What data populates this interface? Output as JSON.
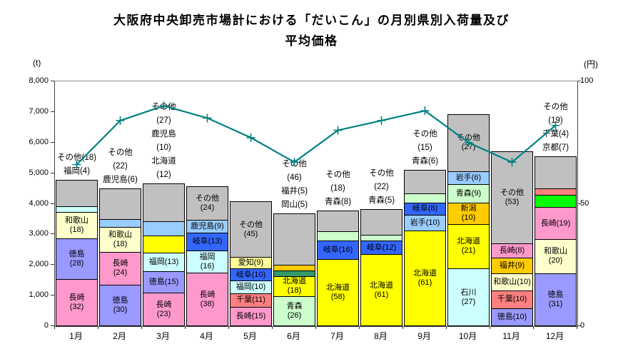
{
  "title": "大阪府中央卸売市場計における「だいこん」の月別県別入荷量及び\n平均価格",
  "left_axis": {
    "unit": "(t)",
    "max": 8000,
    "ticks": [
      "8,000",
      "7,000",
      "6,000",
      "5,000",
      "4,000",
      "3,000",
      "2,000",
      "1,000",
      "0"
    ]
  },
  "right_axis": {
    "unit": "(円)",
    "max": 100,
    "ticks": [
      "100",
      "50",
      "0"
    ]
  },
  "colors": {
    "長崎": "#FF99CC",
    "徳島": "#9999FF",
    "和歌山": "#FFFFCC",
    "福岡": "#CCFFFF",
    "鹿児島": "#99CCFF",
    "北海道": "#FFFF00",
    "岐阜": "#3366FF",
    "青森": "#CCFFCC",
    "千葉": "#FF8080",
    "愛知": "#FFFF99",
    "岡山": "#339966",
    "福井": "#FFCC00",
    "新潟": "#FFCC00",
    "岩手": "#99CCFF",
    "石川": "#CCFFFF",
    "京都": "#00FF00",
    "その他": "#C0C0C0",
    "line": "#008080"
  },
  "chart_data": {
    "type": "bar",
    "subtype": "stacked-bar-with-line",
    "title": "大阪府中央卸売市場計における「だいこん」の月別県別入荷量及び平均価格",
    "ylabel_left": "(t)",
    "ylabel_right": "(円)",
    "ylim_left": [
      0,
      8000
    ],
    "ylim_right": [
      0,
      100
    ],
    "grid": false,
    "legend": "none",
    "categories": [
      "1月",
      "2月",
      "3月",
      "4月",
      "5月",
      "6月",
      "7月",
      "8月",
      "9月",
      "10月",
      "11月",
      "12月"
    ],
    "bar_totals_t": [
      4750,
      4470,
      4650,
      4540,
      4060,
      3670,
      3760,
      3810,
      5090,
      6910,
      5700,
      5530
    ],
    "months": [
      {
        "month": "1月",
        "total_t": 4750,
        "above_label": "その他(18)\n福岡(4)",
        "segments": [
          {
            "name": "長崎",
            "pct": 32,
            "label": "長崎\n(32)"
          },
          {
            "name": "徳島",
            "pct": 28,
            "label": "徳島\n(28)"
          },
          {
            "name": "和歌山",
            "pct": 18,
            "label": "和歌山\n(18)"
          },
          {
            "name": "福岡",
            "pct": 4,
            "label": ""
          },
          {
            "name": "その他",
            "pct": 18,
            "label": ""
          }
        ]
      },
      {
        "month": "2月",
        "total_t": 4470,
        "above_label": "その他\n(22)\n鹿児島(6)",
        "segments": [
          {
            "name": "徳島",
            "pct": 30,
            "label": "徳島\n(30)"
          },
          {
            "name": "長崎",
            "pct": 24,
            "label": "長崎\n(24)"
          },
          {
            "name": "和歌山",
            "pct": 18,
            "label": "和歌山\n(18)"
          },
          {
            "name": "鹿児島",
            "pct": 6,
            "label": ""
          },
          {
            "name": "その他",
            "pct": 22,
            "label": ""
          }
        ]
      },
      {
        "month": "3月",
        "total_t": 4650,
        "above_label": "その他\n(27)\n鹿児島\n(10)\n北海道\n(12)",
        "segments": [
          {
            "name": "長崎",
            "pct": 23,
            "label": "長崎\n(23)"
          },
          {
            "name": "徳島",
            "pct": 15,
            "label": "徳島(15)"
          },
          {
            "name": "福岡",
            "pct": 13,
            "label": "福岡(13)"
          },
          {
            "name": "北海道",
            "pct": 12,
            "label": ""
          },
          {
            "name": "鹿児島",
            "pct": 10,
            "label": ""
          },
          {
            "name": "その他",
            "pct": 27,
            "label": ""
          }
        ]
      },
      {
        "month": "4月",
        "total_t": 4540,
        "above_label": "",
        "segments": [
          {
            "name": "長崎",
            "pct": 38,
            "label": "長崎\n(38)"
          },
          {
            "name": "福岡",
            "pct": 16,
            "label": "福岡\n(16)"
          },
          {
            "name": "岐阜",
            "pct": 13,
            "label": "岐阜(13)"
          },
          {
            "name": "鹿児島",
            "pct": 9,
            "label": "鹿児島(9)"
          },
          {
            "name": "その他",
            "pct": 24,
            "label": "その他\n(24)"
          }
        ]
      },
      {
        "month": "5月",
        "total_t": 4060,
        "above_label": "",
        "segments": [
          {
            "name": "長崎",
            "pct": 15,
            "label": "長崎(15)"
          },
          {
            "name": "千葉",
            "pct": 11,
            "label": "千葉(11)"
          },
          {
            "name": "福岡",
            "pct": 10,
            "label": "福岡(10)"
          },
          {
            "name": "岐阜",
            "pct": 10,
            "label": "岐阜(10)"
          },
          {
            "name": "愛知",
            "pct": 9,
            "label": "愛知(9)"
          },
          {
            "name": "その他",
            "pct": 45,
            "label": "その他\n(45)"
          }
        ]
      },
      {
        "month": "6月",
        "total_t": 3670,
        "above_label": "その他\n(46)\n福井(5)\n岡山(5)",
        "segments": [
          {
            "name": "青森",
            "pct": 26,
            "label": "青森\n(26)"
          },
          {
            "name": "北海道",
            "pct": 18,
            "label": "北海道\n(18)"
          },
          {
            "name": "岡山",
            "pct": 5,
            "label": ""
          },
          {
            "name": "福井",
            "pct": 5,
            "label": ""
          },
          {
            "name": "その他",
            "pct": 46,
            "label": ""
          }
        ]
      },
      {
        "month": "7月",
        "total_t": 3760,
        "above_label": "その他\n(18)\n青森(8)",
        "segments": [
          {
            "name": "北海道",
            "pct": 58,
            "label": "北海道\n(58)"
          },
          {
            "name": "岐阜",
            "pct": 16,
            "label": "岐阜(16)"
          },
          {
            "name": "青森",
            "pct": 8,
            "label": ""
          },
          {
            "name": "その他",
            "pct": 18,
            "label": ""
          }
        ]
      },
      {
        "month": "8月",
        "total_t": 3810,
        "above_label": "その他\n(22)\n青森(5)",
        "segments": [
          {
            "name": "北海道",
            "pct": 61,
            "label": "北海道\n(61)"
          },
          {
            "name": "岐阜",
            "pct": 12,
            "label": "岐阜(12)"
          },
          {
            "name": "青森",
            "pct": 5,
            "label": ""
          },
          {
            "name": "その他",
            "pct": 22,
            "label": ""
          }
        ]
      },
      {
        "month": "9月",
        "total_t": 5090,
        "above_label": "その他\n(15)\n青森(6)",
        "segments": [
          {
            "name": "北海道",
            "pct": 61,
            "label": "北海道\n(61)"
          },
          {
            "name": "岩手",
            "pct": 10,
            "label": "岩手(10)"
          },
          {
            "name": "岐阜",
            "pct": 8,
            "label": "岐阜(8)"
          },
          {
            "name": "青森",
            "pct": 6,
            "label": ""
          },
          {
            "name": "その他",
            "pct": 15,
            "label": ""
          }
        ]
      },
      {
        "month": "10月",
        "total_t": 6910,
        "above_label": "",
        "segments": [
          {
            "name": "石川",
            "pct": 27,
            "label": "石川\n(27)"
          },
          {
            "name": "北海道",
            "pct": 21,
            "label": "北海道\n(21)"
          },
          {
            "name": "新潟",
            "pct": 10,
            "label": "新潟\n(10)"
          },
          {
            "name": "青森",
            "pct": 9,
            "label": "青森(9)"
          },
          {
            "name": "岩手",
            "pct": 6,
            "label": "岩手(6)"
          },
          {
            "name": "その他",
            "pct": 27,
            "label": "その他\n(27)"
          }
        ]
      },
      {
        "month": "11月",
        "total_t": 5700,
        "above_label": "",
        "segments": [
          {
            "name": "徳島",
            "pct": 10,
            "label": "徳島(10)"
          },
          {
            "name": "千葉",
            "pct": 10,
            "label": "千葉(10)"
          },
          {
            "name": "和歌山",
            "pct": 10,
            "label": "和歌山(10)"
          },
          {
            "name": "福井",
            "pct": 9,
            "label": "福井(9)"
          },
          {
            "name": "長崎",
            "pct": 8,
            "label": "長崎(8)"
          },
          {
            "name": "その他",
            "pct": 53,
            "label": "その他\n(53)"
          }
        ]
      },
      {
        "month": "12月",
        "total_t": 5530,
        "above_label": "その他\n(19)\n千葉(4)\n京都(7)",
        "segments": [
          {
            "name": "徳島",
            "pct": 31,
            "label": "徳島\n(31)"
          },
          {
            "name": "和歌山",
            "pct": 20,
            "label": "和歌山\n(20)"
          },
          {
            "name": "長崎",
            "pct": 19,
            "label": "長崎(19)"
          },
          {
            "name": "京都",
            "pct": 7,
            "label": ""
          },
          {
            "name": "千葉",
            "pct": 4,
            "label": ""
          },
          {
            "name": "その他",
            "pct": 19,
            "label": ""
          }
        ]
      }
    ],
    "price_line": {
      "name": "平均価格",
      "axis": "right",
      "values": [
        66,
        84,
        90,
        85,
        77,
        67,
        80,
        84,
        88,
        75,
        67,
        82
      ]
    }
  }
}
